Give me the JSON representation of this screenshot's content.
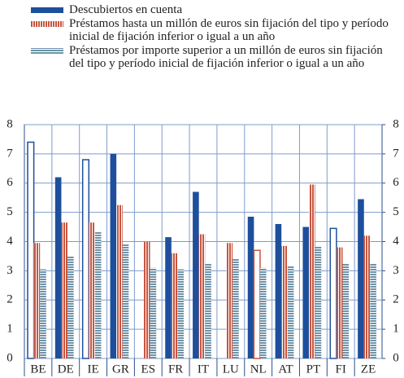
{
  "chart_data": {
    "type": "bar",
    "categories": [
      "BE",
      "DE",
      "IE",
      "GR",
      "ES",
      "FR",
      "IT",
      "LU",
      "NL",
      "AT",
      "PT",
      "FI",
      "ZE"
    ],
    "series": [
      {
        "name": "Descubiertos en cuenta",
        "color": "#1d4f9c",
        "pattern": "solid",
        "values": [
          7.4,
          6.2,
          6.8,
          7.0,
          null,
          4.15,
          5.7,
          null,
          4.85,
          4.6,
          4.5,
          4.45,
          5.45
        ],
        "point_fills": [
          "#ffffff",
          "#1d4f9c",
          "#ffffff",
          "#1d4f9c",
          null,
          "#1d4f9c",
          "#1d4f9c",
          null,
          "#1d4f9c",
          "#1d4f9c",
          "#1d4f9c",
          "#ffffff",
          "#1d4f9c"
        ]
      },
      {
        "name": "Préstamos hasta un millón de euros sin fijación del tipo y período inicial de fijación inferior o igual a un año",
        "color": "#c8553f",
        "pattern": "vstripes",
        "values": [
          3.95,
          4.65,
          4.65,
          5.25,
          4.0,
          3.6,
          4.25,
          3.95,
          3.7,
          3.85,
          5.95,
          3.8,
          4.2
        ],
        "point_fills": [
          null,
          null,
          null,
          null,
          null,
          null,
          null,
          null,
          "#ffffff",
          null,
          null,
          null,
          null
        ]
      },
      {
        "name": "Préstamos por importe superior a un millón de euros sin fijación del tipo y período inicial de fijación inferior o igual a un año",
        "color": "#6f93a8",
        "pattern": "hstripes",
        "values": [
          3.05,
          3.5,
          4.35,
          3.9,
          3.1,
          3.05,
          3.25,
          3.4,
          3.1,
          3.15,
          3.85,
          3.25,
          3.25
        ],
        "point_fills": [
          null,
          null,
          null,
          null,
          null,
          null,
          null,
          null,
          null,
          null,
          null,
          null,
          null
        ]
      }
    ],
    "ylim": [
      0,
      8
    ],
    "yticks": [
      0,
      1,
      2,
      3,
      4,
      5,
      6,
      7,
      8
    ],
    "y2lim": [
      0,
      8
    ],
    "y2ticks": [
      0,
      1,
      2,
      3,
      4,
      5,
      6,
      7,
      8
    ],
    "grid": true
  }
}
